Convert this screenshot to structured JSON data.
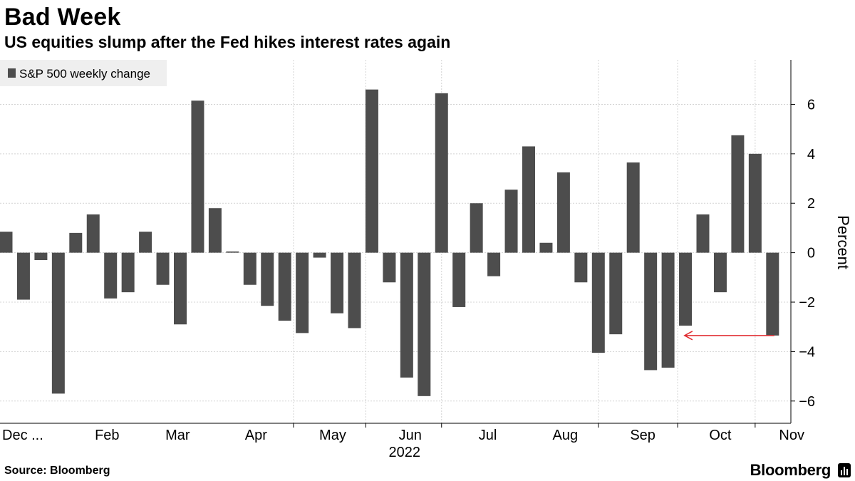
{
  "chart_data": {
    "type": "bar",
    "title": "Bad Week",
    "subtitle": "US equities slump after the Fed hikes interest rates again",
    "xlabel": "",
    "ylabel": "Percent",
    "xlabel_year": "2022",
    "ylim": [
      -6.9,
      7.8
    ],
    "yticks": [
      6,
      4,
      2,
      0,
      -2,
      -4,
      -6
    ],
    "grid": true,
    "legend_position": "top-left",
    "series": [
      {
        "name": "S&P 500 weekly change",
        "color": "#4d4d4d",
        "values": [
          0.85,
          -1.9,
          -0.3,
          -5.7,
          0.8,
          1.55,
          -1.85,
          -1.6,
          0.85,
          -1.3,
          -2.9,
          6.15,
          1.8,
          0.05,
          -1.3,
          -2.15,
          -2.75,
          -3.25,
          -0.2,
          -2.45,
          -3.05,
          6.6,
          -1.2,
          -5.05,
          -5.8,
          6.45,
          -2.2,
          2.0,
          -0.95,
          2.55,
          4.3,
          0.4,
          3.25,
          -1.2,
          -4.05,
          -3.3,
          3.65,
          -4.75,
          -4.65,
          -2.95,
          1.55,
          -1.6,
          4.75,
          4.0,
          -3.35
        ]
      }
    ],
    "x_month_labels": [
      {
        "label": "Dec ...",
        "week_index": -0.45
      },
      {
        "label": "Feb",
        "week_index": 5.8
      },
      {
        "label": "Mar",
        "week_index": 9.85
      },
      {
        "label": "Apr",
        "week_index": 14.35
      },
      {
        "label": "May",
        "week_index": 18.75
      },
      {
        "label": "Jun",
        "week_index": 23.2
      },
      {
        "label": "Jul",
        "week_index": 27.65
      },
      {
        "label": "Aug",
        "week_index": 32.1
      },
      {
        "label": "Sep",
        "week_index": 36.55
      },
      {
        "label": "Oct",
        "week_index": 41.0
      },
      {
        "label": "Nov",
        "week_index": 45.1
      }
    ],
    "x_gridline_week_positions": [
      -0.5,
      16.5,
      20.65,
      25.0,
      34.0,
      38.55,
      43.0
    ],
    "annotation": {
      "type": "arrow",
      "color": "#e0292e",
      "y_value": -3.35,
      "from_week_index": 44.1,
      "to_week_index": 38.95
    }
  },
  "source_label": "Source: Bloomberg",
  "brand_label": "Bloomberg"
}
